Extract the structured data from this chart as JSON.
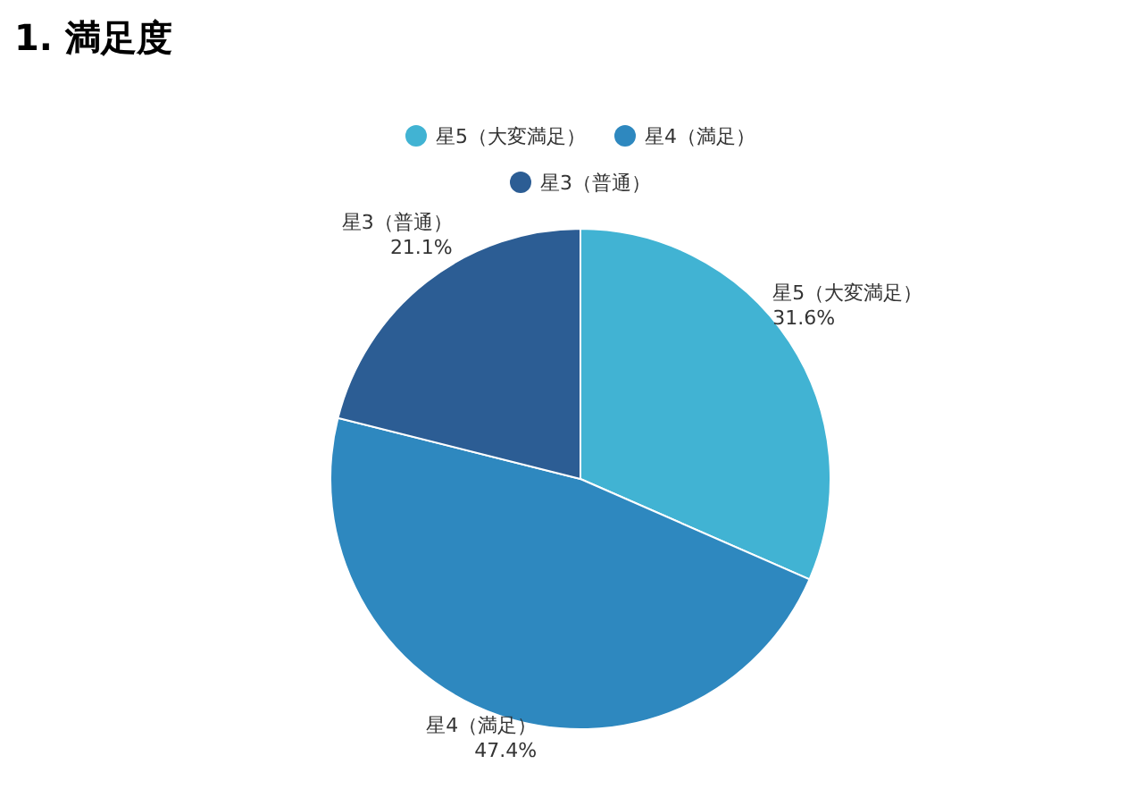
{
  "chart_data": {
    "type": "pie",
    "title": "1. 満足度",
    "categories": [
      "星5（大変満足）",
      "星4（満足）",
      "星3（普通）"
    ],
    "values": [
      31.6,
      47.4,
      21.1
    ],
    "value_labels": [
      "31.6%",
      "47.4%",
      "21.1%"
    ],
    "colors": [
      "#41b3d3",
      "#2e88bf",
      "#2c5d94"
    ],
    "legend": "top"
  }
}
